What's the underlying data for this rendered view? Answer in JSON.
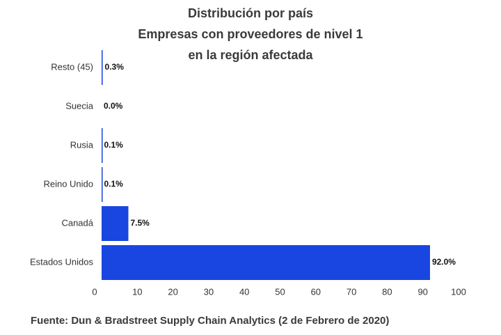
{
  "chart_data": {
    "type": "barh",
    "title": [
      "Distribución por país",
      "Empresas con proveedores de nivel 1",
      "en la región afectada"
    ],
    "categories": [
      "Resto (45)",
      "Suecia",
      "Rusia",
      "Reino Unido",
      "Canadá",
      "Estados Unidos"
    ],
    "values": [
      0.3,
      0.0,
      0.1,
      0.1,
      7.5,
      92.0
    ],
    "value_labels": [
      "0.3%",
      "0.0%",
      "0.1%",
      "0.1%",
      "7.5%",
      "92.0%"
    ],
    "color": "#1945e0",
    "xlim": [
      0,
      100
    ],
    "xticks": [
      0,
      10,
      20,
      30,
      40,
      50,
      60,
      70,
      80,
      90,
      100
    ],
    "grid": false,
    "source": "Fuente: Dun & Bradstreet Supply Chain Analytics (2 de Febrero de 2020)"
  }
}
